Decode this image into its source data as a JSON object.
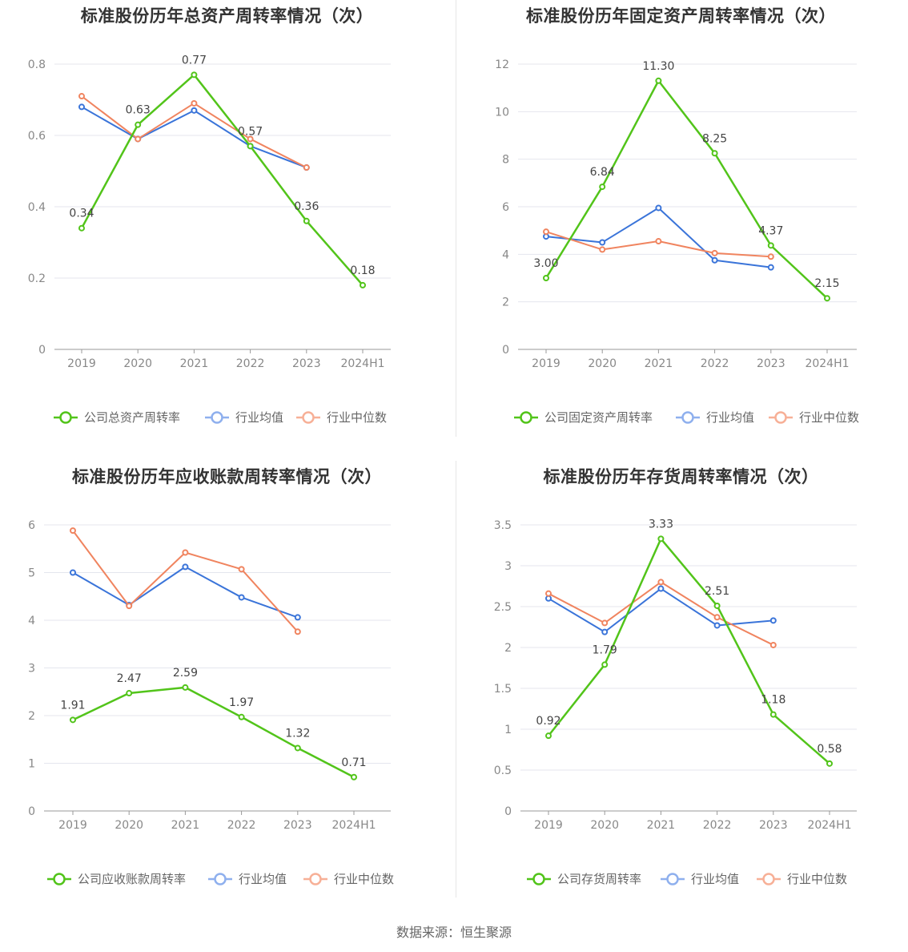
{
  "source": "数据来源：恒生聚源",
  "colors": {
    "company": "#52c41a",
    "avg": "#3a74d9",
    "median": "#f0845f",
    "legend_avg": "#8fb0ee",
    "legend_median": "#f7b097"
  },
  "chart_data": [
    {
      "type": "line",
      "title": "标准股份历年总资产周转率情况（次）",
      "categories": [
        "2019",
        "2020",
        "2021",
        "2022",
        "2023",
        "2024H1"
      ],
      "ylim": [
        0,
        0.8
      ],
      "yticks": [
        0,
        0.2,
        0.4,
        0.6,
        0.8
      ],
      "ytick_labels": [
        "0",
        "0.2",
        "0.4",
        "0.6",
        "0.8"
      ],
      "legend_position": "bottom",
      "series": [
        {
          "name": "公司总资产周转率",
          "color": "#52c41a",
          "values": [
            0.34,
            0.63,
            0.77,
            0.57,
            0.36,
            0.18
          ],
          "labels": [
            "0.34",
            "0.63",
            "0.77",
            "0.57",
            "0.36",
            "0.18"
          ]
        },
        {
          "name": "行业均值",
          "color": "#3a74d9",
          "values": [
            0.68,
            0.59,
            0.67,
            0.57,
            0.51,
            null
          ]
        },
        {
          "name": "行业中位数",
          "color": "#f0845f",
          "values": [
            0.71,
            0.59,
            0.69,
            0.59,
            0.51,
            null
          ]
        }
      ]
    },
    {
      "type": "line",
      "title": "标准股份历年固定资产周转率情况（次）",
      "categories": [
        "2019",
        "2020",
        "2021",
        "2022",
        "2023",
        "2024H1"
      ],
      "ylim": [
        0,
        12
      ],
      "yticks": [
        0,
        2,
        4,
        6,
        8,
        10,
        12
      ],
      "ytick_labels": [
        "0",
        "2",
        "4",
        "6",
        "8",
        "10",
        "12"
      ],
      "legend_position": "bottom",
      "series": [
        {
          "name": "公司固定资产周转率",
          "color": "#52c41a",
          "values": [
            3.0,
            6.84,
            11.3,
            8.25,
            4.37,
            2.15
          ],
          "labels": [
            "3.00",
            "6.84",
            "11.30",
            "8.25",
            "4.37",
            "2.15"
          ]
        },
        {
          "name": "行业均值",
          "color": "#3a74d9",
          "values": [
            4.75,
            4.5,
            5.95,
            3.75,
            3.45,
            null
          ]
        },
        {
          "name": "行业中位数",
          "color": "#f0845f",
          "values": [
            4.95,
            4.2,
            4.55,
            4.05,
            3.9,
            null
          ]
        }
      ]
    },
    {
      "type": "line",
      "title": "标准股份历年应收账款周转率情况（次）",
      "categories": [
        "2019",
        "2020",
        "2021",
        "2022",
        "2023",
        "2024H1"
      ],
      "ylim": [
        0,
        6
      ],
      "yticks": [
        0,
        1,
        2,
        3,
        4,
        5,
        6
      ],
      "ytick_labels": [
        "0",
        "1",
        "2",
        "3",
        "4",
        "5",
        "6"
      ],
      "legend_position": "bottom",
      "series": [
        {
          "name": "公司应收账款周转率",
          "color": "#52c41a",
          "values": [
            1.91,
            2.47,
            2.59,
            1.97,
            1.32,
            0.71
          ],
          "labels": [
            "1.91",
            "2.47",
            "2.59",
            "1.97",
            "1.32",
            "0.71"
          ]
        },
        {
          "name": "行业均值",
          "color": "#3a74d9",
          "values": [
            5.0,
            4.32,
            5.12,
            4.48,
            4.06,
            null
          ]
        },
        {
          "name": "行业中位数",
          "color": "#f0845f",
          "values": [
            5.88,
            4.3,
            5.42,
            5.07,
            3.76,
            null
          ]
        }
      ]
    },
    {
      "type": "line",
      "title": "标准股份历年存货周转率情况（次）",
      "categories": [
        "2019",
        "2020",
        "2021",
        "2022",
        "2023",
        "2024H1"
      ],
      "ylim": [
        0,
        3.5
      ],
      "yticks": [
        0,
        0.5,
        1,
        1.5,
        2,
        2.5,
        3,
        3.5
      ],
      "ytick_labels": [
        "0",
        "0.5",
        "1",
        "1.5",
        "2",
        "2.5",
        "3",
        "3.5"
      ],
      "legend_position": "bottom",
      "series": [
        {
          "name": "公司存货周转率",
          "color": "#52c41a",
          "values": [
            0.92,
            1.79,
            3.33,
            2.51,
            1.18,
            0.58
          ],
          "labels": [
            "0.92",
            "1.79",
            "3.33",
            "2.51",
            "1.18",
            "0.58"
          ]
        },
        {
          "name": "行业均值",
          "color": "#3a74d9",
          "values": [
            2.6,
            2.19,
            2.72,
            2.27,
            2.33,
            null
          ]
        },
        {
          "name": "行业中位数",
          "color": "#f0845f",
          "values": [
            2.66,
            2.3,
            2.8,
            2.37,
            2.03,
            null
          ]
        }
      ]
    }
  ]
}
